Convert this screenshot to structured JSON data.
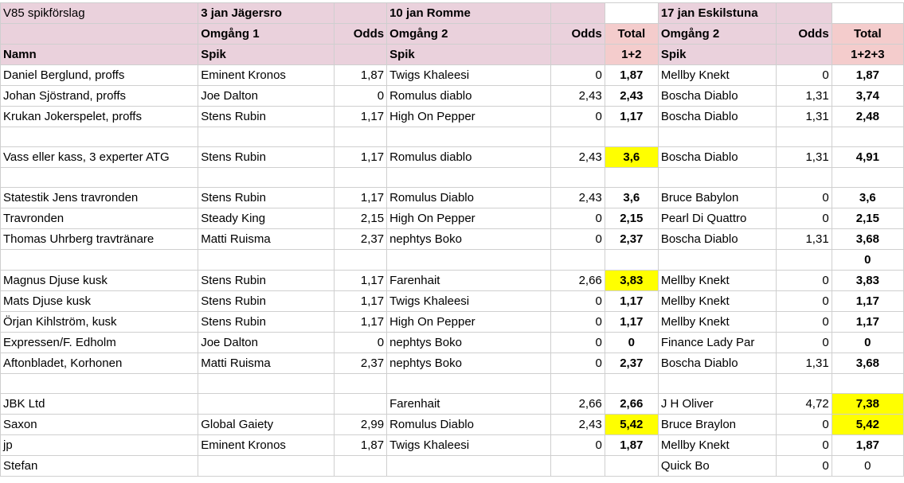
{
  "sheet": {
    "header_rows": [
      [
        "V85 spikförslag",
        "3 jan Jägersro",
        "",
        "10 jan Romme",
        "",
        "",
        "17 jan Eskilstuna",
        "",
        ""
      ],
      [
        "",
        "Omgång 1",
        "Odds",
        "Omgång 2",
        "Odds",
        "Total",
        "Omgång 2",
        "Odds",
        "Total"
      ],
      [
        "Namn",
        "Spik",
        "",
        "Spik",
        "",
        "1+2",
        "Spik",
        "",
        "1+2+3"
      ]
    ],
    "rows": [
      [
        "Daniel Berglund, proffs",
        "Eminent Kronos",
        "1,87",
        "Twigs Khaleesi",
        "0",
        "1,87",
        "Mellby Knekt",
        "0",
        "1,87"
      ],
      [
        "Johan Sjöstrand, proffs",
        "Joe Dalton",
        "0",
        "Romulus diablo",
        "2,43",
        "2,43",
        "Boscha Diablo",
        "1,31",
        "3,74"
      ],
      [
        "Krukan Jokerspelet, proffs",
        "Stens Rubin",
        "1,17",
        "High On Pepper",
        "0",
        "1,17",
        "Boscha Diablo",
        "1,31",
        "2,48"
      ],
      [
        "",
        "",
        "",
        "",
        "",
        "",
        "",
        "",
        ""
      ],
      [
        "Vass eller kass, 3 experter ATG",
        "Stens Rubin",
        "1,17",
        "Romulus diablo",
        "2,43",
        "3,6",
        "Boscha Diablo",
        "1,31",
        "4,91"
      ],
      [
        "",
        "",
        "",
        "",
        "",
        "",
        "",
        "",
        ""
      ],
      [
        "Statestik Jens travronden",
        "Stens Rubin",
        "1,17",
        "Romulus Diablo",
        "2,43",
        "3,6",
        " Bruce Babylon",
        "0",
        "3,6"
      ],
      [
        "Travronden",
        "Steady King",
        "2,15",
        "High On Pepper",
        "0",
        "2,15",
        "Pearl Di Quattro",
        "0",
        "2,15"
      ],
      [
        "Thomas Uhrberg travtränare",
        "Matti Ruisma",
        "2,37",
        "nephtys Boko",
        "0",
        "2,37",
        "Boscha Diablo",
        "1,31",
        "3,68"
      ],
      [
        "",
        "",
        "",
        "",
        "",
        "",
        "",
        "",
        "0"
      ],
      [
        "Magnus Djuse kusk",
        "Stens Rubin",
        "1,17",
        "Farenhait",
        "2,66",
        "3,83",
        "Mellby Knekt",
        "0",
        "3,83"
      ],
      [
        "Mats Djuse kusk",
        "Stens Rubin",
        "1,17",
        "Twigs Khaleesi",
        "0",
        "1,17",
        "Mellby Knekt",
        "0",
        "1,17"
      ],
      [
        "Örjan Kihlström, kusk",
        "Stens Rubin",
        "1,17",
        "High On Pepper",
        "0",
        "1,17",
        "Mellby Knekt",
        "0",
        "1,17"
      ],
      [
        "Expressen/F. Edholm",
        "Joe Dalton",
        "0",
        "nephtys Boko",
        "0",
        "0",
        "Finance Lady Par",
        "0",
        "0"
      ],
      [
        "Aftonbladet, Korhonen",
        "Matti Ruisma",
        "2,37",
        "nephtys Boko",
        "0",
        "2,37",
        "Boscha Diablo",
        "1,31",
        "3,68"
      ],
      [
        "",
        "",
        "",
        "",
        "",
        "",
        "",
        "",
        ""
      ],
      [
        "JBK Ltd",
        "",
        "",
        "Farenhait",
        "2,66",
        "2,66",
        "J H Oliver",
        "4,72",
        "7,38"
      ],
      [
        "Saxon",
        "Global Gaiety",
        "2,99",
        "Romulus Diablo",
        "2,43",
        "5,42",
        "Bruce Braylon",
        "0",
        "5,42"
      ],
      [
        "jp",
        "Eminent Kronos",
        "1,87",
        "Twigs Khaleesi",
        "0",
        "1,87",
        "Mellby Knekt",
        "0",
        "1,87"
      ],
      [
        "Stefan",
        "",
        "",
        "",
        "",
        "",
        "Quick Bo",
        "0",
        "0"
      ]
    ],
    "highlights": [
      [
        4,
        5
      ],
      [
        10,
        5
      ],
      [
        16,
        8
      ],
      [
        17,
        5
      ],
      [
        17,
        8
      ]
    ],
    "highlight_color": "#ffff00",
    "header_color": "#ead1dc",
    "total_header_color": "#f4cccc"
  }
}
